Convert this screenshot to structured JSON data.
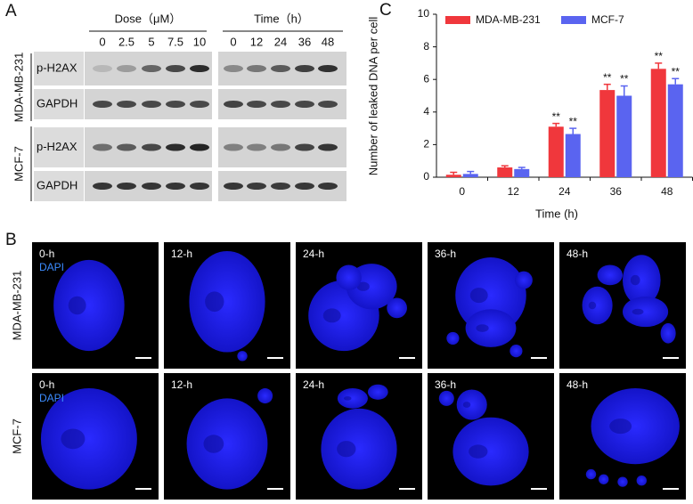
{
  "panel_a": {
    "label": "A",
    "dose_header": "Dose（μM）",
    "doses": [
      "0",
      "2.5",
      "5",
      "7.5",
      "10"
    ],
    "time_header": "Time（h）",
    "times": [
      "0",
      "12",
      "24",
      "36",
      "48"
    ],
    "cell_lines": [
      "MDA-MB-231",
      "MCF-7"
    ],
    "proteins": [
      "p-H2AX",
      "GAPDH"
    ]
  },
  "panel_b": {
    "label": "B",
    "cell_lines": [
      "MDA-MB-231",
      "MCF-7"
    ],
    "times": [
      "0-h",
      "12-h",
      "24-h",
      "36-h",
      "48-h"
    ],
    "stain": "DAPI"
  },
  "chart_data": {
    "type": "bar",
    "panel_label": "C",
    "ylabel": "Number of leaked DNA per cell",
    "xlabel": "Time (h)",
    "categories": [
      "0",
      "12",
      "24",
      "36",
      "48"
    ],
    "series": [
      {
        "name": "MDA-MB-231",
        "color": "#f0373c",
        "values": [
          0.15,
          0.6,
          3.1,
          5.35,
          6.65
        ],
        "errors": [
          0.15,
          0.1,
          0.2,
          0.35,
          0.35
        ],
        "significance": [
          null,
          null,
          "**",
          "**",
          "**"
        ]
      },
      {
        "name": "MCF-7",
        "color": "#5a64f0",
        "values": [
          0.2,
          0.5,
          2.65,
          5.0,
          5.7
        ],
        "errors": [
          0.15,
          0.1,
          0.35,
          0.6,
          0.35
        ],
        "significance": [
          null,
          null,
          "**",
          "**",
          "**"
        ]
      }
    ],
    "ylim": [
      0,
      10
    ],
    "yticks": [
      0,
      2,
      4,
      6,
      8,
      10
    ]
  }
}
